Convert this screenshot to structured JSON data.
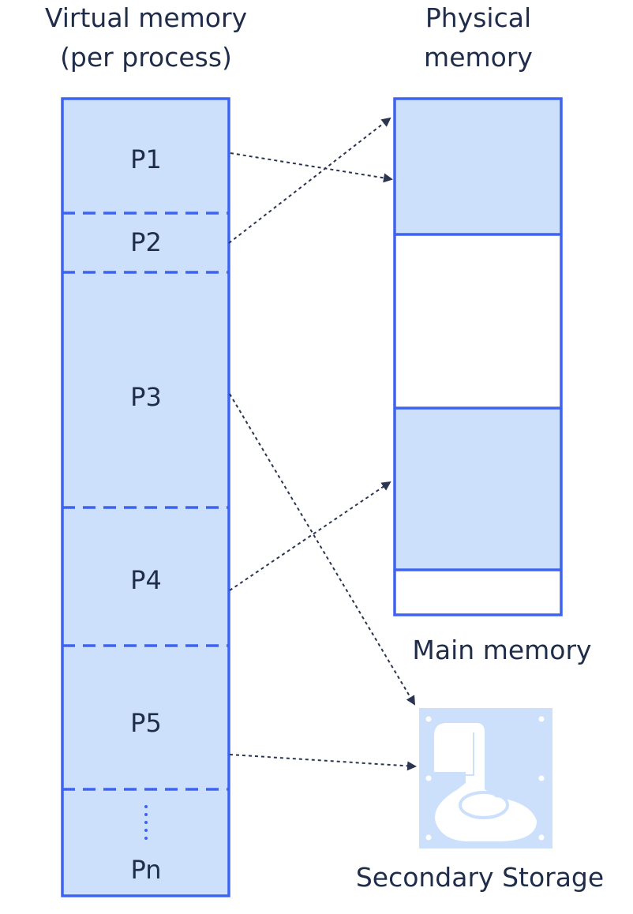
{
  "virtual_memory": {
    "title_line1": "Virtual memory",
    "title_line2": "(per process)",
    "pages": [
      {
        "label": "P1"
      },
      {
        "label": "P2"
      },
      {
        "label": "P3"
      },
      {
        "label": "P4"
      },
      {
        "label": "P5"
      },
      {
        "label": "Pn"
      }
    ],
    "ellipsis": "⋮"
  },
  "physical_memory": {
    "title_line1": "Physical",
    "title_line2": "memory",
    "caption": "Main memory"
  },
  "secondary_storage": {
    "caption": "Secondary Storage",
    "icon": "hard-disk-icon"
  },
  "colors": {
    "border": "#3d63f0",
    "fill": "#cce0fc",
    "text": "#1f2d4a",
    "arrow": "#2b3550"
  }
}
